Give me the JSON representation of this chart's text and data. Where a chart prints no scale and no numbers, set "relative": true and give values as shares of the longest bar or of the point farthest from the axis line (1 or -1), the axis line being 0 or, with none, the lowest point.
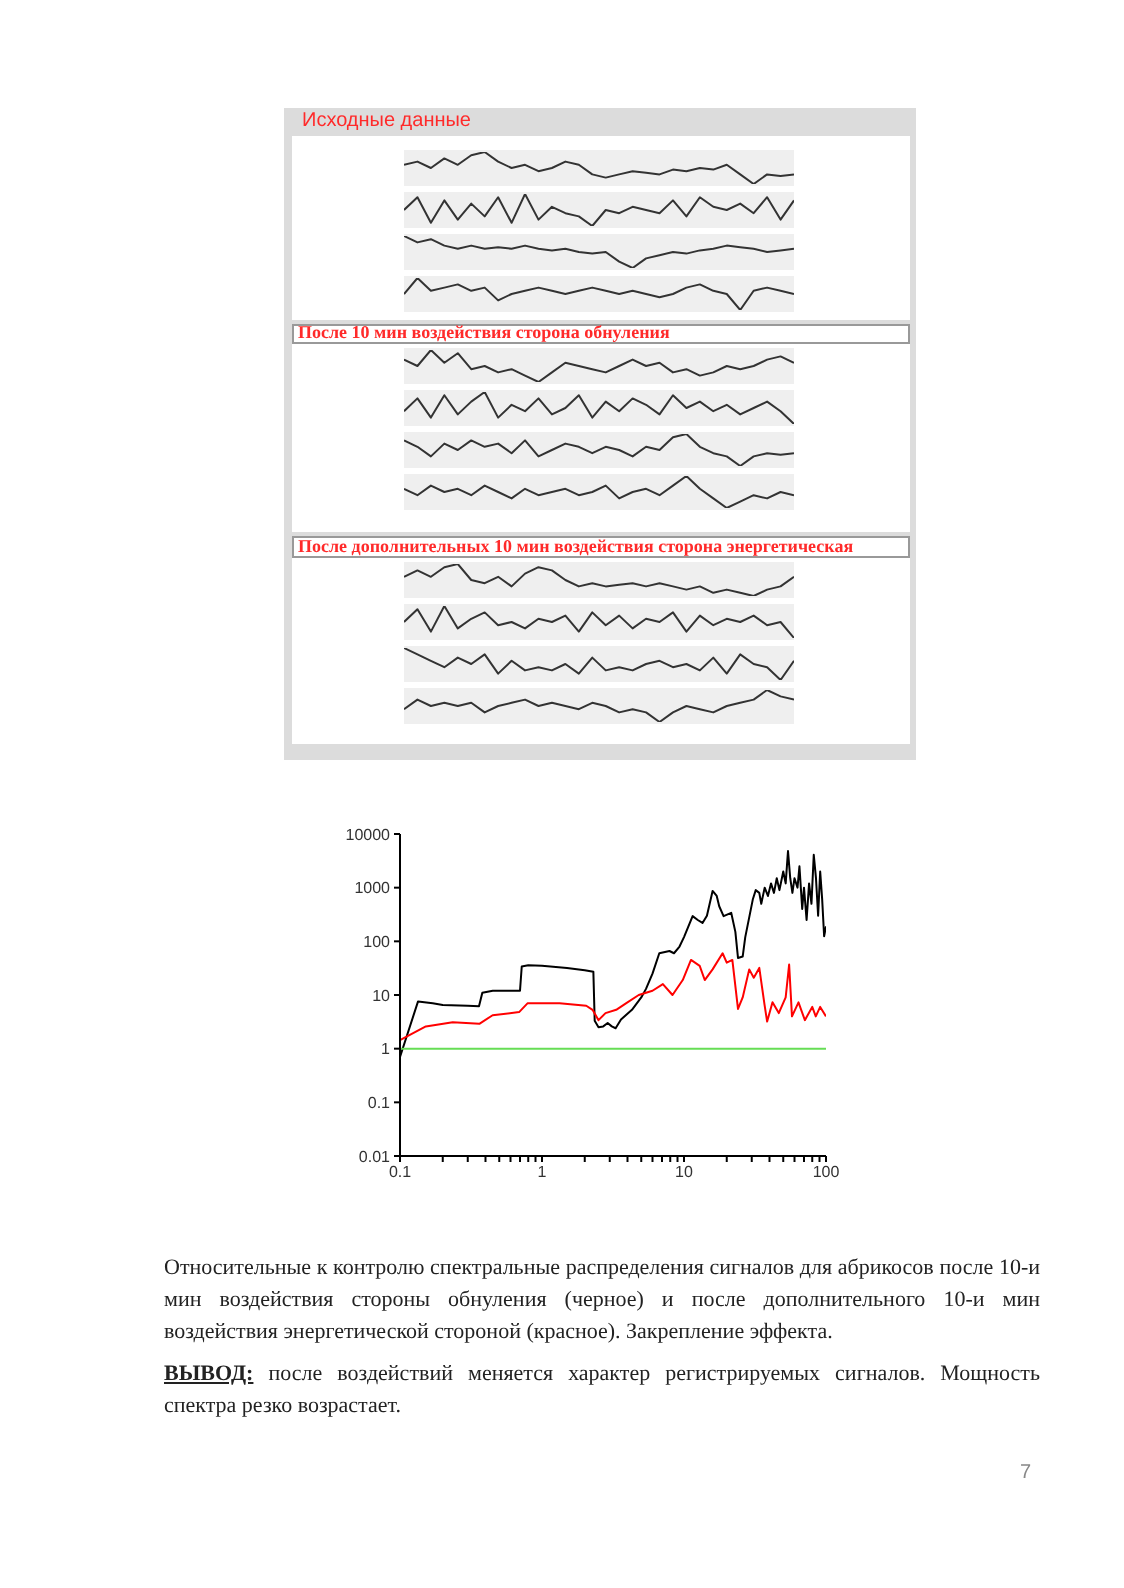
{
  "chart_data": [
    {
      "type": "line",
      "title": "Исходные данные",
      "relative": true,
      "categories": [
        null,
        null,
        null,
        null,
        null,
        null,
        null,
        null,
        null,
        null,
        null,
        null,
        null,
        null,
        null,
        null,
        null,
        null,
        null,
        null,
        null,
        null,
        null,
        null,
        null,
        null,
        null,
        null,
        null,
        null
      ],
      "color": "#333333",
      "values": [
        0.6,
        0.7,
        0.5,
        0.8,
        0.6,
        0.9,
        1,
        0.7,
        0.5,
        0.6,
        0.4,
        0.5,
        0.7,
        0.6,
        0.3,
        0.2,
        0.3,
        0.4,
        0.35,
        0.3,
        0.45,
        0.4,
        0.5,
        0.45,
        0.6,
        0.3,
        0,
        0.3,
        0.25,
        0.3
      ]
    },
    {
      "type": "line",
      "relative": true,
      "categories": [
        null,
        null,
        null,
        null,
        null,
        null,
        null,
        null,
        null,
        null,
        null,
        null,
        null,
        null,
        null,
        null,
        null,
        null,
        null,
        null,
        null,
        null,
        null,
        null,
        null,
        null,
        null,
        null,
        null,
        null
      ],
      "color": "#333333",
      "values": [
        0.5,
        0.9,
        0.1,
        0.8,
        0.2,
        0.7,
        0.3,
        0.9,
        0.1,
        1,
        0.2,
        0.6,
        0.4,
        0.3,
        0,
        0.5,
        0.4,
        0.6,
        0.5,
        0.4,
        0.8,
        0.3,
        0.9,
        0.6,
        0.5,
        0.7,
        0.4,
        0.9,
        0.2,
        0.8
      ]
    },
    {
      "type": "line",
      "relative": true,
      "categories": [
        null,
        null,
        null,
        null,
        null,
        null,
        null,
        null,
        null,
        null,
        null,
        null,
        null,
        null,
        null,
        null,
        null,
        null,
        null,
        null,
        null,
        null,
        null,
        null,
        null,
        null,
        null,
        null,
        null,
        null
      ],
      "color": "#333333",
      "values": [
        1,
        0.8,
        0.9,
        0.7,
        0.6,
        0.7,
        0.6,
        0.65,
        0.6,
        0.7,
        0.6,
        0.55,
        0.6,
        0.5,
        0.45,
        0.5,
        0.2,
        0,
        0.3,
        0.4,
        0.5,
        0.45,
        0.55,
        0.6,
        0.7,
        0.65,
        0.6,
        0.5,
        0.55,
        0.6
      ]
    },
    {
      "type": "line",
      "relative": true,
      "categories": [
        null,
        null,
        null,
        null,
        null,
        null,
        null,
        null,
        null,
        null,
        null,
        null,
        null,
        null,
        null,
        null,
        null,
        null,
        null,
        null,
        null,
        null,
        null,
        null,
        null,
        null,
        null,
        null,
        null,
        null
      ],
      "color": "#333333",
      "values": [
        0.5,
        1,
        0.6,
        0.7,
        0.8,
        0.6,
        0.7,
        0.3,
        0.5,
        0.6,
        0.7,
        0.6,
        0.5,
        0.6,
        0.7,
        0.6,
        0.5,
        0.6,
        0.5,
        0.4,
        0.5,
        0.7,
        0.8,
        0.6,
        0.5,
        0,
        0.6,
        0.7,
        0.6,
        0.5
      ]
    },
    {
      "type": "line",
      "title": "После 10 мин воздействия сторона обнуления",
      "relative": true,
      "categories": [
        null,
        null,
        null,
        null,
        null,
        null,
        null,
        null,
        null,
        null,
        null,
        null,
        null,
        null,
        null,
        null,
        null,
        null,
        null,
        null,
        null,
        null,
        null,
        null,
        null,
        null,
        null,
        null,
        null,
        null
      ],
      "color": "#333333",
      "values": [
        0.7,
        0.5,
        1,
        0.6,
        0.9,
        0.4,
        0.5,
        0.3,
        0.4,
        0.2,
        0,
        0.3,
        0.6,
        0.5,
        0.4,
        0.3,
        0.5,
        0.7,
        0.5,
        0.6,
        0.3,
        0.4,
        0.2,
        0.3,
        0.5,
        0.4,
        0.5,
        0.7,
        0.8,
        0.6
      ]
    },
    {
      "type": "line",
      "relative": true,
      "categories": [
        null,
        null,
        null,
        null,
        null,
        null,
        null,
        null,
        null,
        null,
        null,
        null,
        null,
        null,
        null,
        null,
        null,
        null,
        null,
        null,
        null,
        null,
        null,
        null,
        null,
        null,
        null,
        null,
        null,
        null
      ],
      "color": "#333333",
      "values": [
        0.4,
        0.8,
        0.2,
        0.9,
        0.3,
        0.7,
        1,
        0.2,
        0.6,
        0.4,
        0.8,
        0.3,
        0.5,
        0.9,
        0.2,
        0.7,
        0.4,
        0.8,
        0.6,
        0.3,
        0.9,
        0.5,
        0.7,
        0.4,
        0.6,
        0.3,
        0.5,
        0.7,
        0.4,
        0
      ]
    },
    {
      "type": "line",
      "relative": true,
      "categories": [
        null,
        null,
        null,
        null,
        null,
        null,
        null,
        null,
        null,
        null,
        null,
        null,
        null,
        null,
        null,
        null,
        null,
        null,
        null,
        null,
        null,
        null,
        null,
        null,
        null,
        null,
        null,
        null,
        null,
        null
      ],
      "color": "#333333",
      "values": [
        0.8,
        0.6,
        0.3,
        0.7,
        0.5,
        0.8,
        0.6,
        0.7,
        0.4,
        0.8,
        0.3,
        0.5,
        0.7,
        0.6,
        0.4,
        0.6,
        0.5,
        0.3,
        0.6,
        0.5,
        0.9,
        1,
        0.6,
        0.4,
        0.3,
        0,
        0.3,
        0.4,
        0.35,
        0.4
      ]
    },
    {
      "type": "line",
      "relative": true,
      "categories": [
        null,
        null,
        null,
        null,
        null,
        null,
        null,
        null,
        null,
        null,
        null,
        null,
        null,
        null,
        null,
        null,
        null,
        null,
        null,
        null,
        null,
        null,
        null,
        null,
        null,
        null,
        null,
        null,
        null,
        null
      ],
      "color": "#333333",
      "values": [
        0.6,
        0.4,
        0.7,
        0.5,
        0.6,
        0.4,
        0.7,
        0.5,
        0.3,
        0.6,
        0.4,
        0.5,
        0.6,
        0.4,
        0.5,
        0.7,
        0.3,
        0.5,
        0.6,
        0.4,
        0.7,
        1,
        0.6,
        0.3,
        0,
        0.2,
        0.4,
        0.3,
        0.5,
        0.4
      ]
    },
    {
      "type": "line",
      "title": "После дополнительных 10 мин воздействия сторона энергетическая",
      "relative": true,
      "categories": [
        null,
        null,
        null,
        null,
        null,
        null,
        null,
        null,
        null,
        null,
        null,
        null,
        null,
        null,
        null,
        null,
        null,
        null,
        null,
        null,
        null,
        null,
        null,
        null,
        null,
        null,
        null,
        null,
        null,
        null
      ],
      "color": "#333333",
      "values": [
        0.6,
        0.8,
        0.6,
        0.9,
        1,
        0.5,
        0.4,
        0.6,
        0.3,
        0.7,
        0.9,
        0.8,
        0.5,
        0.3,
        0.4,
        0.3,
        0.35,
        0.4,
        0.3,
        0.4,
        0.3,
        0.2,
        0.3,
        0.1,
        0.2,
        0.1,
        0,
        0.2,
        0.3,
        0.6
      ]
    },
    {
      "type": "line",
      "relative": true,
      "categories": [
        null,
        null,
        null,
        null,
        null,
        null,
        null,
        null,
        null,
        null,
        null,
        null,
        null,
        null,
        null,
        null,
        null,
        null,
        null,
        null,
        null,
        null,
        null,
        null,
        null,
        null,
        null,
        null,
        null,
        null
      ],
      "color": "#333333",
      "values": [
        0.5,
        0.9,
        0.2,
        1,
        0.3,
        0.6,
        0.8,
        0.4,
        0.5,
        0.3,
        0.6,
        0.5,
        0.7,
        0.2,
        0.8,
        0.4,
        0.7,
        0.3,
        0.6,
        0.5,
        0.8,
        0.2,
        0.7,
        0.4,
        0.6,
        0.5,
        0.7,
        0.4,
        0.5,
        0
      ]
    },
    {
      "type": "line",
      "relative": true,
      "categories": [
        null,
        null,
        null,
        null,
        null,
        null,
        null,
        null,
        null,
        null,
        null,
        null,
        null,
        null,
        null,
        null,
        null,
        null,
        null,
        null,
        null,
        null,
        null,
        null,
        null,
        null,
        null,
        null,
        null,
        null
      ],
      "color": "#333333",
      "values": [
        1,
        0.8,
        0.6,
        0.4,
        0.7,
        0.5,
        0.8,
        0.2,
        0.6,
        0.3,
        0.4,
        0.3,
        0.5,
        0.2,
        0.7,
        0.3,
        0.4,
        0.3,
        0.5,
        0.6,
        0.4,
        0.5,
        0.3,
        0.7,
        0.2,
        0.8,
        0.5,
        0.4,
        0,
        0.6
      ]
    },
    {
      "type": "line",
      "relative": true,
      "categories": [
        null,
        null,
        null,
        null,
        null,
        null,
        null,
        null,
        null,
        null,
        null,
        null,
        null,
        null,
        null,
        null,
        null,
        null,
        null,
        null,
        null,
        null,
        null,
        null,
        null,
        null,
        null,
        null,
        null,
        null
      ],
      "color": "#333333",
      "values": [
        0.4,
        0.7,
        0.5,
        0.6,
        0.5,
        0.6,
        0.3,
        0.5,
        0.6,
        0.7,
        0.5,
        0.6,
        0.5,
        0.4,
        0.6,
        0.5,
        0.3,
        0.4,
        0.3,
        0,
        0.3,
        0.5,
        0.4,
        0.3,
        0.5,
        0.6,
        0.7,
        1,
        0.8,
        0.7
      ]
    },
    {
      "type": "line",
      "log": "xy",
      "xlim": [
        0.1,
        100
      ],
      "ylim": [
        0.01,
        10000
      ],
      "xticks": [
        0.1,
        {
          "value": 0.2,
          "label": null
        },
        {
          "value": 0.3,
          "label": null
        },
        {
          "value": 0.4,
          "label": null
        },
        {
          "value": 0.5,
          "label": null
        },
        {
          "value": 0.6,
          "label": null
        },
        {
          "value": 0.7,
          "label": null
        },
        {
          "value": 0.8,
          "label": null
        },
        {
          "value": 0.9,
          "label": null
        },
        1,
        {
          "value": 2,
          "label": null
        },
        {
          "value": 3,
          "label": null
        },
        {
          "value": 4,
          "label": null
        },
        {
          "value": 5,
          "label": null
        },
        {
          "value": 6,
          "label": null
        },
        {
          "value": 7,
          "label": null
        },
        {
          "value": 8,
          "label": null
        },
        {
          "value": 9,
          "label": null
        },
        10,
        {
          "value": 20,
          "label": null
        },
        {
          "value": 30,
          "label": null
        },
        {
          "value": 40,
          "label": null
        },
        {
          "value": 50,
          "label": null
        },
        {
          "value": 60,
          "label": null
        },
        {
          "value": 70,
          "label": null
        },
        {
          "value": 80,
          "label": null
        },
        {
          "value": 90,
          "label": null
        },
        100
      ],
      "yticks": [
        0.01,
        0.1,
        1,
        10,
        100,
        1000,
        10000
      ],
      "series": [
        {
          "color": "#000000",
          "x": [
            0.1,
            0.134,
            0.17,
            0.2,
            0.3,
            0.36,
            0.38,
            0.45,
            0.6,
            0.7,
            0.72,
            0.8,
            1,
            1.5,
            2,
            2.3,
            2.35,
            2.5,
            2.7,
            2.9,
            3.1,
            3.3,
            3.6,
            4.3,
            5,
            5.4,
            6,
            6.7,
            7.9,
            8.5,
            9.3,
            10,
            11.5,
            12.5,
            13.5,
            14.5,
            15.9,
            17,
            17.7,
            19,
            21.5,
            23,
            24,
            25.9,
            27,
            30.5,
            32,
            33.9,
            35,
            37,
            39,
            41,
            43,
            45,
            47,
            50,
            52,
            54,
            56,
            58,
            60,
            63,
            65,
            68,
            70,
            73,
            76,
            79,
            82,
            85,
            88,
            91,
            94,
            97,
            100
          ],
          "values": [
            0.7,
            7.6,
            7,
            6.5,
            6.3,
            6.2,
            11,
            12,
            12,
            12,
            34,
            36,
            35,
            32,
            29,
            27,
            3.3,
            2.5,
            2.6,
            3,
            2.6,
            2.4,
            3.5,
            5.3,
            9,
            13,
            25,
            60,
            66,
            60,
            80,
            120,
            295,
            250,
            220,
            300,
            870,
            700,
            450,
            295,
            340,
            150,
            49,
            52,
            120,
            600,
            900,
            800,
            500,
            1000,
            700,
            1200,
            800,
            1500,
            900,
            2000,
            1200,
            4800,
            1500,
            800,
            1500,
            1000,
            2500,
            400,
            1000,
            250,
            1200,
            500,
            4100,
            1500,
            300,
            2000,
            600,
            124,
            190
          ]
        },
        {
          "color": "#ff0000",
          "x": [
            0.1,
            0.152,
            0.235,
            0.362,
            0.449,
            0.69,
            0.79,
            1.33,
            2.05,
            2.27,
            2.5,
            2.8,
            3.33,
            3.9,
            4.8,
            6,
            7.1,
            8.3,
            9.8,
            11.2,
            12.9,
            14,
            15.9,
            18.7,
            20,
            21.9,
            24,
            25.9,
            28.8,
            31,
            33.9,
            36.9,
            38.5,
            42,
            46.5,
            52,
            55,
            57.6,
            64,
            71,
            80,
            84.7,
            91,
            100
          ],
          "values": [
            1.45,
            2.6,
            3.1,
            2.9,
            4.2,
            4.8,
            7,
            7,
            6.3,
            5.3,
            3.4,
            4.6,
            5.3,
            7,
            10,
            12,
            16,
            10,
            19,
            45,
            35,
            19,
            30,
            60,
            40,
            45,
            5.5,
            9,
            30,
            21,
            32,
            6.6,
            3.2,
            7.3,
            4.6,
            9,
            37,
            4,
            7.3,
            3.4,
            6,
            4,
            6,
            4
          ]
        },
        {
          "color": "#66dd55",
          "x": [
            0.1,
            100
          ],
          "values": [
            1,
            1
          ]
        }
      ],
      "annotations": [
        "Относительные к контролю спектральные распределения сигналов для абрикосов после 10-и мин воздействия стороны обнуления (черное) и после дополнительного 10-и мин воздействия энергетической стороной (красное). Закрепление эффекта.",
        "ВЫВОД:",
        "после воздействий меняется характер регистрируемых сигналов. Мощность спектра резко возрастает.",
        "7"
      ]
    }
  ]
}
